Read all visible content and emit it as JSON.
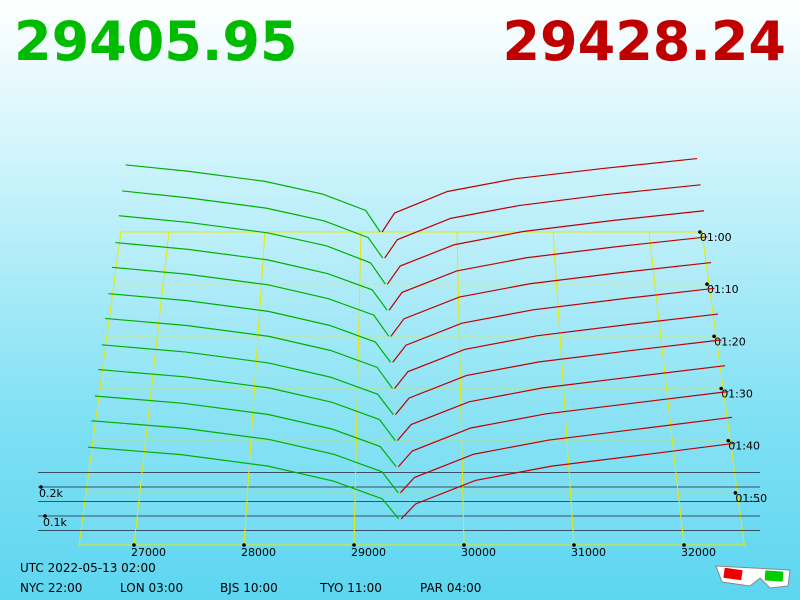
{
  "header": {
    "bid_price": 29405.95,
    "ask_price": 29428.24
  },
  "chart": {
    "price_lim": [
      26500,
      32550
    ],
    "price_ticks": [
      27000,
      28000,
      29000,
      30000,
      31000,
      32000
    ],
    "time_lim": [
      60,
      120
    ],
    "time_ticks": [
      {
        "value": 60,
        "label": "01:00"
      },
      {
        "value": 70,
        "label": "01:10"
      },
      {
        "value": 80,
        "label": "01:20"
      },
      {
        "value": 90,
        "label": "01:30"
      },
      {
        "value": 100,
        "label": "01:40"
      },
      {
        "value": 110,
        "label": "01:50"
      }
    ],
    "depth_ticks": [
      {
        "value": 100,
        "label": "0.1k"
      },
      {
        "value": 200,
        "label": "0.2k"
      }
    ],
    "depth_grid": [
      50,
      100,
      150,
      200,
      250
    ],
    "bid_color": "#00b000",
    "ask_color": "#c00000",
    "snapshots": [
      {
        "time": 60,
        "bid_prices": [
          29200,
          29050,
          28600,
          28000,
          27200,
          26550
        ],
        "bid_depths": [
          0,
          85,
          150,
          200,
          240,
          265
        ],
        "ask_prices": [
          29220,
          29350,
          29900,
          30600,
          31500,
          32500
        ],
        "ask_depths": [
          0,
          75,
          160,
          210,
          250,
          290
        ]
      },
      {
        "time": 65,
        "bid_prices": [
          29230,
          29080,
          28630,
          28030,
          27230,
          26550
        ],
        "bid_depths": [
          0,
          80,
          145,
          195,
          235,
          262
        ],
        "ask_prices": [
          29250,
          29380,
          29930,
          30630,
          31530,
          32500
        ],
        "ask_depths": [
          0,
          72,
          155,
          205,
          248,
          286
        ]
      },
      {
        "time": 70,
        "bid_prices": [
          29260,
          29110,
          28660,
          28060,
          27260,
          26550
        ],
        "bid_depths": [
          0,
          82,
          148,
          198,
          238,
          264
        ],
        "ask_prices": [
          29280,
          29410,
          29960,
          30660,
          31560,
          32500
        ],
        "ask_depths": [
          0,
          70,
          152,
          203,
          245,
          283
        ]
      },
      {
        "time": 75,
        "bid_prices": [
          29280,
          29130,
          28680,
          28080,
          27280,
          26550
        ],
        "bid_depths": [
          0,
          78,
          140,
          192,
          232,
          258
        ],
        "ask_prices": [
          29300,
          29430,
          29980,
          30680,
          31580,
          32500
        ],
        "ask_depths": [
          0,
          68,
          150,
          200,
          242,
          280
        ]
      },
      {
        "time": 80,
        "bid_prices": [
          29300,
          29150,
          28700,
          28100,
          27300,
          26550
        ],
        "bid_depths": [
          0,
          80,
          142,
          194,
          234,
          260
        ],
        "ask_prices": [
          29320,
          29450,
          30000,
          30700,
          31600,
          32500
        ],
        "ask_depths": [
          0,
          66,
          148,
          198,
          240,
          278
        ]
      },
      {
        "time": 85,
        "bid_prices": [
          29320,
          29170,
          28720,
          28120,
          27320,
          26550
        ],
        "bid_depths": [
          0,
          76,
          138,
          190,
          230,
          256
        ],
        "ask_prices": [
          29340,
          29470,
          30020,
          30720,
          31620,
          32500
        ],
        "ask_depths": [
          0,
          64,
          146,
          196,
          238,
          276
        ]
      },
      {
        "time": 90,
        "bid_prices": [
          29340,
          29190,
          28740,
          28140,
          27340,
          26550
        ],
        "bid_depths": [
          0,
          78,
          140,
          192,
          232,
          258
        ],
        "ask_prices": [
          29360,
          29490,
          30040,
          30740,
          31640,
          32500
        ],
        "ask_depths": [
          0,
          62,
          144,
          194,
          236,
          274
        ]
      },
      {
        "time": 95,
        "bid_prices": [
          29350,
          29200,
          28750,
          28150,
          27350,
          26550
        ],
        "bid_depths": [
          0,
          74,
          136,
          188,
          228,
          254
        ],
        "ask_prices": [
          29370,
          29500,
          30050,
          30750,
          31650,
          32500
        ],
        "ask_depths": [
          0,
          60,
          142,
          192,
          234,
          272
        ]
      },
      {
        "time": 100,
        "bid_prices": [
          29370,
          29220,
          28770,
          28170,
          27370,
          26550
        ],
        "bid_depths": [
          0,
          76,
          138,
          190,
          230,
          256
        ],
        "ask_prices": [
          29390,
          29520,
          30070,
          30770,
          31670,
          32500
        ],
        "ask_depths": [
          0,
          58,
          140,
          190,
          232,
          270
        ]
      },
      {
        "time": 105,
        "bid_prices": [
          29380,
          29230,
          28780,
          28180,
          27380,
          26550
        ],
        "bid_depths": [
          0,
          72,
          134,
          186,
          226,
          252
        ],
        "ask_prices": [
          29400,
          29530,
          30080,
          30780,
          31680,
          32500
        ],
        "ask_depths": [
          0,
          56,
          138,
          188,
          230,
          268
        ]
      },
      {
        "time": 110,
        "bid_prices": [
          29400,
          29250,
          28800,
          28200,
          27400,
          26550
        ],
        "bid_depths": [
          0,
          74,
          136,
          188,
          228,
          254
        ],
        "ask_prices": [
          29420,
          29550,
          30100,
          30800,
          31700,
          32500
        ],
        "ask_depths": [
          0,
          54,
          136,
          186,
          228,
          266
        ]
      },
      {
        "time": 115,
        "bid_prices": [
          29405,
          29255,
          28805,
          28205,
          27405,
          26550
        ],
        "bid_depths": [
          0,
          70,
          132,
          184,
          224,
          250
        ],
        "ask_prices": [
          29428,
          29560,
          30110,
          30810,
          31710,
          32500
        ],
        "ask_depths": [
          0,
          52,
          134,
          184,
          226,
          264
        ]
      }
    ]
  },
  "footer": {
    "utc": "UTC 2022-05-13 02:00",
    "zones": [
      "NYC 22:00",
      "LON 03:00",
      "BJS 10:00",
      "TYO 11:00",
      "PAR 04:00"
    ]
  }
}
